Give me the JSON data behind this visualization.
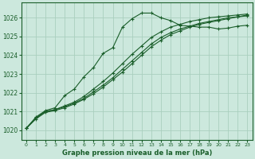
{
  "background_color": "#cce8dd",
  "grid_color": "#aacfbe",
  "line_color": "#1a5e2a",
  "xlabel": "Graphe pression niveau de la mer (hPa)",
  "ylim": [
    1019.5,
    1026.8
  ],
  "xlim": [
    -0.5,
    23.5
  ],
  "yticks": [
    1020,
    1021,
    1022,
    1023,
    1024,
    1025,
    1026
  ],
  "xticks": [
    0,
    1,
    2,
    3,
    4,
    5,
    6,
    7,
    8,
    9,
    10,
    11,
    12,
    13,
    14,
    15,
    16,
    17,
    18,
    19,
    20,
    21,
    22,
    23
  ],
  "line1_x": [
    0,
    1,
    2,
    3,
    4,
    5,
    6,
    7,
    8,
    9,
    10,
    11,
    12,
    13,
    14,
    15,
    16,
    17,
    18,
    19,
    20,
    21,
    22,
    23
  ],
  "line1_y": [
    1020.1,
    1020.7,
    1021.05,
    1021.2,
    1021.85,
    1022.2,
    1022.85,
    1023.35,
    1024.1,
    1024.4,
    1025.5,
    1025.95,
    1026.25,
    1026.25,
    1026.0,
    1025.85,
    1025.6,
    1025.55,
    1025.5,
    1025.5,
    1025.4,
    1025.45,
    1025.55,
    1025.6
  ],
  "line2_x": [
    0,
    1,
    2,
    3,
    4,
    5,
    6,
    7,
    8,
    9,
    10,
    11,
    12,
    13,
    14,
    15,
    16,
    17,
    18,
    19,
    20,
    21,
    22,
    23
  ],
  "line2_y": [
    1020.1,
    1020.6,
    1020.95,
    1021.05,
    1021.2,
    1021.4,
    1021.65,
    1021.95,
    1022.3,
    1022.7,
    1023.1,
    1023.55,
    1024.0,
    1024.45,
    1024.8,
    1025.1,
    1025.3,
    1025.5,
    1025.65,
    1025.75,
    1025.85,
    1025.95,
    1026.05,
    1026.1
  ],
  "line3_x": [
    0,
    1,
    2,
    3,
    4,
    5,
    6,
    7,
    8,
    9,
    10,
    11,
    12,
    13,
    14,
    15,
    16,
    17,
    18,
    19,
    20,
    21,
    22,
    23
  ],
  "line3_y": [
    1020.1,
    1020.65,
    1021.0,
    1021.1,
    1021.25,
    1021.45,
    1021.7,
    1022.05,
    1022.4,
    1022.8,
    1023.25,
    1023.7,
    1024.15,
    1024.6,
    1024.95,
    1025.2,
    1025.4,
    1025.55,
    1025.7,
    1025.8,
    1025.9,
    1026.0,
    1026.05,
    1026.15
  ],
  "line4_x": [
    0,
    1,
    2,
    3,
    4,
    5,
    6,
    7,
    8,
    9,
    10,
    11,
    12,
    13,
    14,
    15,
    16,
    17,
    18,
    19,
    20,
    21,
    22,
    23
  ],
  "line4_y": [
    1020.1,
    1020.65,
    1021.0,
    1021.1,
    1021.3,
    1021.5,
    1021.8,
    1022.2,
    1022.6,
    1023.05,
    1023.55,
    1024.05,
    1024.5,
    1024.95,
    1025.25,
    1025.5,
    1025.65,
    1025.8,
    1025.9,
    1026.0,
    1026.05,
    1026.1,
    1026.15,
    1026.2
  ]
}
